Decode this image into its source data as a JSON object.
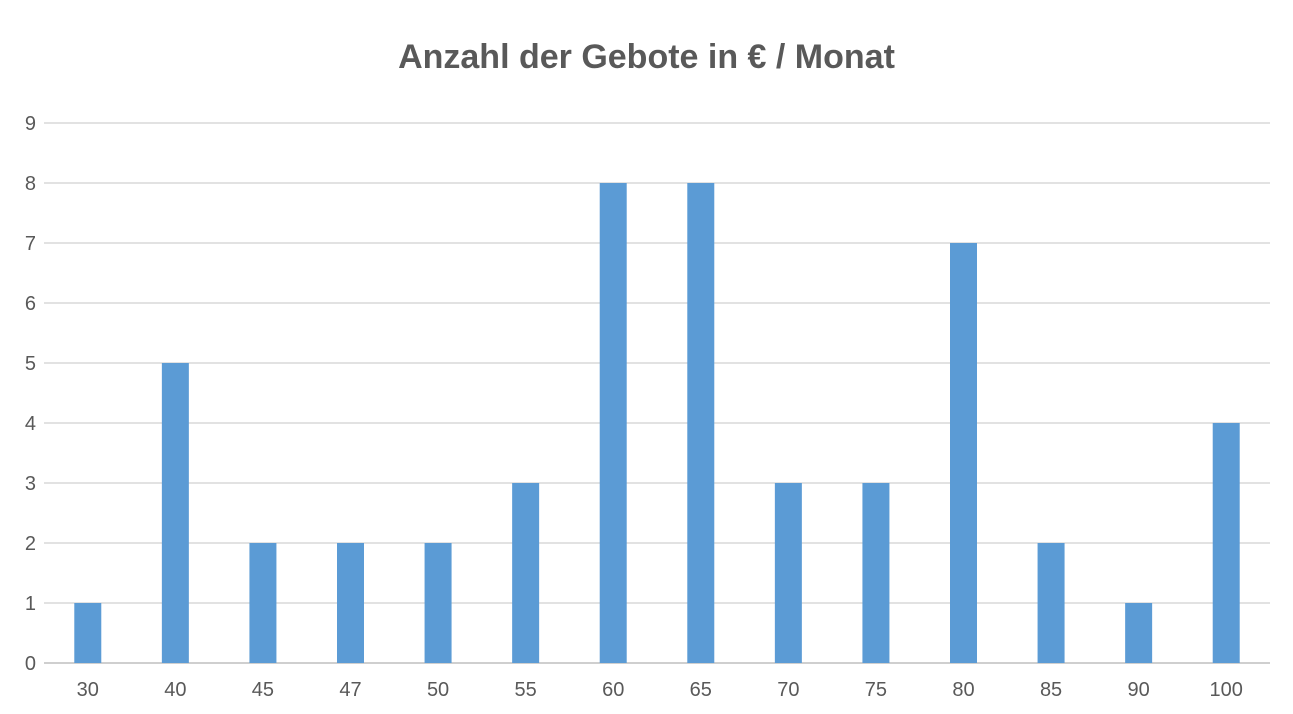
{
  "chart_data": {
    "type": "bar",
    "title": "Anzahl der Gebote in € / Monat",
    "xlabel": "",
    "ylabel": "",
    "categories": [
      "30",
      "40",
      "45",
      "47",
      "50",
      "55",
      "60",
      "65",
      "70",
      "75",
      "80",
      "85",
      "90",
      "100"
    ],
    "values": [
      1,
      5,
      2,
      2,
      2,
      3,
      8,
      8,
      3,
      3,
      7,
      2,
      1,
      4
    ],
    "ylim": [
      0,
      9
    ],
    "yticks": [
      0,
      1,
      2,
      3,
      4,
      5,
      6,
      7,
      8,
      9
    ],
    "grid": true,
    "legend": "none",
    "colors": {
      "bar": "#5b9bd5",
      "grid": "#d9d9d9",
      "axis": "#bfbfbf",
      "text": "#595959"
    }
  }
}
